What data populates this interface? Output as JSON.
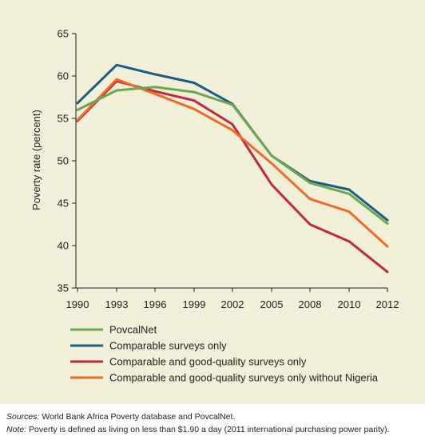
{
  "chart_data": {
    "type": "line",
    "x": [
      "1990",
      "1993",
      "1996",
      "1999",
      "2002",
      "2005",
      "2008",
      "2010",
      "2012"
    ],
    "ylabel": "Poverty rate (percent)",
    "ylim": [
      35,
      65
    ],
    "yticks": [
      35,
      40,
      45,
      50,
      55,
      60,
      65
    ],
    "grid": false,
    "legend_position": "bottom",
    "series": [
      {
        "name": "PovcalNet",
        "color": "#6aa84f",
        "values": [
          56.0,
          58.3,
          58.7,
          58.1,
          56.6,
          50.6,
          47.4,
          46.1,
          42.6
        ]
      },
      {
        "name": "Comparable surveys only",
        "color": "#1c5b85",
        "values": [
          56.8,
          61.3,
          60.2,
          59.2,
          56.7,
          50.6,
          47.6,
          46.6,
          43.0
        ]
      },
      {
        "name": "Comparable and good-quality surveys only",
        "color": "#c0283c",
        "values": [
          54.7,
          59.4,
          58.2,
          57.1,
          54.3,
          47.2,
          42.5,
          40.5,
          36.9
        ]
      },
      {
        "name": "Comparable and good-quality surveys only without Nigeria",
        "color": "#ee6a2b",
        "values": [
          54.8,
          59.6,
          57.9,
          56.1,
          53.6,
          49.7,
          45.5,
          44.0,
          39.9
        ]
      }
    ]
  },
  "notes": {
    "sources_label": "Sources:",
    "sources_text": " World Bank Africa Poverty database and PovcalNet.",
    "note_label": "Note:",
    "note_text": " Poverty is defined as living on less than $1.90 a day (2011 international purchasing power parity)."
  }
}
